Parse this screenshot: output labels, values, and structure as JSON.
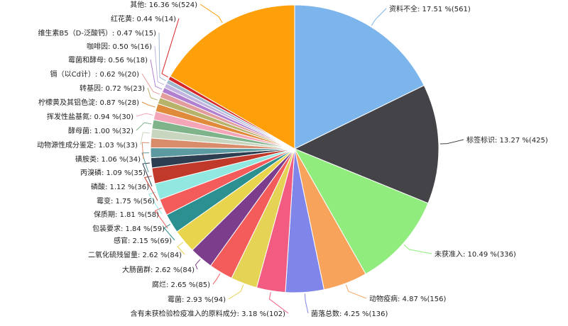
{
  "chart_data": {
    "type": "pie",
    "legend": "none",
    "slices": [
      {
        "label": "资料不全: 17.51 %(561)",
        "value": 561,
        "percent": 17.51,
        "color": "#7cb5ec"
      },
      {
        "label": "标签标识: 13.27 %(425)",
        "value": 425,
        "percent": 13.27,
        "color": "#434348"
      },
      {
        "label": "未获准入: 10.49 %(336)",
        "value": 336,
        "percent": 10.49,
        "color": "#90ed7d"
      },
      {
        "label": "动物疫病: 4.87 %(156)",
        "value": 156,
        "percent": 4.87,
        "color": "#f7a35c"
      },
      {
        "label": "菌落总数: 4.25 %(136)",
        "value": 136,
        "percent": 4.25,
        "color": "#8085e9"
      },
      {
        "label": "含有未获检验检疫准入的原料成分: 3.18 %(102)",
        "value": 102,
        "percent": 3.18,
        "color": "#f15c80"
      },
      {
        "label": "霉菌: 2.93 %(94)",
        "value": 94,
        "percent": 2.93,
        "color": "#e4d354"
      },
      {
        "label": "腐烂: 2.65 %(85)",
        "value": 85,
        "percent": 2.65,
        "color": "#f45b5b"
      },
      {
        "label": "大肠菌群: 2.62 %(84)",
        "value": 84,
        "percent": 2.62,
        "color": "#7b3d8c"
      },
      {
        "label": "二氧化硫残留量: 2.62 %(84)",
        "value": 84,
        "percent": 2.62,
        "color": "#e8d44d"
      },
      {
        "label": "感官: 2.15 %(69)",
        "value": 69,
        "percent": 2.15,
        "color": "#2b908f"
      },
      {
        "label": "包装要求: 1.84 %(59)",
        "value": 59,
        "percent": 1.84,
        "color": "#f45b5b"
      },
      {
        "label": "保质期: 1.81 %(58)",
        "value": 58,
        "percent": 1.81,
        "color": "#91e8e1"
      },
      {
        "label": "霉变: 1.75 %(56)",
        "value": 56,
        "percent": 1.75,
        "color": "#c0392b"
      },
      {
        "label": "磷酸: 1.12 %(36)",
        "value": 36,
        "percent": 1.12,
        "color": "#2c3e50"
      },
      {
        "label": "丙溴磷: 1.09 %(35)",
        "value": 35,
        "percent": 1.09,
        "color": "#5b9aa0"
      },
      {
        "label": "磺胺类: 1.06 %(34)",
        "value": 34,
        "percent": 1.06,
        "color": "#d98c6a"
      },
      {
        "label": "动物源性成分鉴定: 1.03 %(33)",
        "value": 33,
        "percent": 1.03,
        "color": "#c8d6c0"
      },
      {
        "label": "酵母菌: 1.00 %(32)",
        "value": 32,
        "percent": 1.0,
        "color": "#7fb38a"
      },
      {
        "label": "挥发性盐基氮: 0.94 %(30)",
        "value": 30,
        "percent": 0.94,
        "color": "#f4a6b8"
      },
      {
        "label": "柠檬黄及其铝色淀: 0.87 %(28)",
        "value": 28,
        "percent": 0.87,
        "color": "#e08a3c"
      },
      {
        "label": "转基因: 0.72 %(23)",
        "value": 23,
        "percent": 0.72,
        "color": "#b7b36b"
      },
      {
        "label": "镉（以Cd计）: 0.62 %(20)",
        "value": 20,
        "percent": 0.62,
        "color": "#e39b9b"
      },
      {
        "label": "霉菌和酵母: 0.56 %(18)",
        "value": 18,
        "percent": 0.56,
        "color": "#b07fd0"
      },
      {
        "label": "咖啡因: 0.50 %(16)",
        "value": 16,
        "percent": 0.5,
        "color": "#c3b3e0"
      },
      {
        "label": "维生素B5（D-泛酸钙）: 0.47 %(15)",
        "value": 15,
        "percent": 0.47,
        "color": "#9fb8d0"
      },
      {
        "label": "红花黄: 0.44 %(14)",
        "value": 14,
        "percent": 0.44,
        "color": "#d62728"
      },
      {
        "label": "其他: 16.36 %(524)",
        "value": 524,
        "percent": 16.36,
        "color": "#ff9f0a"
      }
    ]
  }
}
